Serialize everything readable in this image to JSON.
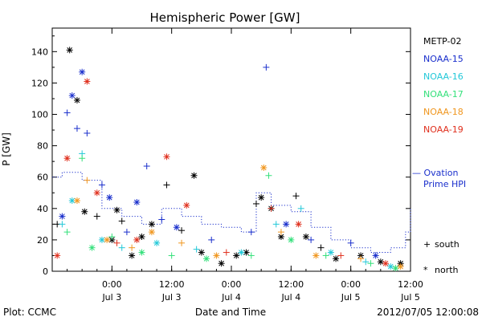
{
  "chart_data": {
    "type": "scatter",
    "title": "Hemispheric Power [GW]",
    "ylabel": "P [GW]",
    "xlabel": "Date and Time",
    "ylim": [
      0,
      155
    ],
    "y_ticks": [
      0,
      20,
      40,
      60,
      80,
      100,
      120,
      140
    ],
    "xlim": [
      "2012-07-02 12:00",
      "2012-07-05 12:00"
    ],
    "x_ticks": [
      {
        "time": "2012-07-03 00:00",
        "line1": "0:00",
        "line2": "Jul 3"
      },
      {
        "time": "2012-07-03 12:00",
        "line1": "12:00",
        "line2": "Jul 3"
      },
      {
        "time": "2012-07-04 00:00",
        "line1": "0:00",
        "line2": "Jul 4"
      },
      {
        "time": "2012-07-04 12:00",
        "line1": "12:00",
        "line2": "Jul 4"
      },
      {
        "time": "2012-07-05 00:00",
        "line1": "0:00",
        "line2": "Jul 5"
      },
      {
        "time": "2012-07-05 12:00",
        "line1": "12:00",
        "line2": "Jul 5"
      }
    ],
    "series": [
      {
        "name": "METP-02",
        "color": "#000000",
        "points": [
          {
            "x": "2012-07-02 13:00",
            "y": 30,
            "m": "+"
          },
          {
            "x": "2012-07-02 15:30",
            "y": 141,
            "m": "*"
          },
          {
            "x": "2012-07-02 17:00",
            "y": 109,
            "m": "*"
          },
          {
            "x": "2012-07-02 18:30",
            "y": 38,
            "m": "*"
          },
          {
            "x": "2012-07-02 21:00",
            "y": 35,
            "m": "+"
          },
          {
            "x": "2012-07-03 00:00",
            "y": 20,
            "m": "*"
          },
          {
            "x": "2012-07-03 01:00",
            "y": 39,
            "m": "*"
          },
          {
            "x": "2012-07-03 02:00",
            "y": 32,
            "m": "+"
          },
          {
            "x": "2012-07-03 04:00",
            "y": 10,
            "m": "*"
          },
          {
            "x": "2012-07-03 06:00",
            "y": 22,
            "m": "*"
          },
          {
            "x": "2012-07-03 08:00",
            "y": 30,
            "m": "*"
          },
          {
            "x": "2012-07-03 11:00",
            "y": 55,
            "m": "+"
          },
          {
            "x": "2012-07-03 14:00",
            "y": 26,
            "m": "+"
          },
          {
            "x": "2012-07-03 16:30",
            "y": 61,
            "m": "*"
          },
          {
            "x": "2012-07-03 18:00",
            "y": 12,
            "m": "*"
          },
          {
            "x": "2012-07-03 22:00",
            "y": 5,
            "m": "*"
          },
          {
            "x": "2012-07-04 01:00",
            "y": 10,
            "m": "*"
          },
          {
            "x": "2012-07-04 03:00",
            "y": 12,
            "m": "*"
          },
          {
            "x": "2012-07-04 05:00",
            "y": 43,
            "m": "+"
          },
          {
            "x": "2012-07-04 06:00",
            "y": 47,
            "m": "*"
          },
          {
            "x": "2012-07-04 08:00",
            "y": 40,
            "m": "*"
          },
          {
            "x": "2012-07-04 10:00",
            "y": 22,
            "m": "*"
          },
          {
            "x": "2012-07-04 13:00",
            "y": 48,
            "m": "+"
          },
          {
            "x": "2012-07-04 15:00",
            "y": 22,
            "m": "*"
          },
          {
            "x": "2012-07-04 18:00",
            "y": 15,
            "m": "+"
          },
          {
            "x": "2012-07-04 21:00",
            "y": 8,
            "m": "*"
          },
          {
            "x": "2012-07-05 02:00",
            "y": 10,
            "m": "*"
          },
          {
            "x": "2012-07-05 06:00",
            "y": 6,
            "m": "*"
          },
          {
            "x": "2012-07-05 10:00",
            "y": 5,
            "m": "*"
          }
        ]
      },
      {
        "name": "NOAA-15",
        "color": "#1a2fcc",
        "points": [
          {
            "x": "2012-07-02 14:00",
            "y": 35,
            "m": "*"
          },
          {
            "x": "2012-07-02 15:00",
            "y": 101,
            "m": "+"
          },
          {
            "x": "2012-07-02 16:00",
            "y": 112,
            "m": "*"
          },
          {
            "x": "2012-07-02 17:00",
            "y": 91,
            "m": "+"
          },
          {
            "x": "2012-07-02 18:00",
            "y": 127,
            "m": "*"
          },
          {
            "x": "2012-07-02 19:00",
            "y": 88,
            "m": "+"
          },
          {
            "x": "2012-07-02 22:00",
            "y": 55,
            "m": "+"
          },
          {
            "x": "2012-07-02 23:30",
            "y": 47,
            "m": "*"
          },
          {
            "x": "2012-07-03 03:00",
            "y": 25,
            "m": "+"
          },
          {
            "x": "2012-07-03 05:00",
            "y": 44,
            "m": "*"
          },
          {
            "x": "2012-07-03 07:00",
            "y": 67,
            "m": "+"
          },
          {
            "x": "2012-07-03 10:00",
            "y": 33,
            "m": "+"
          },
          {
            "x": "2012-07-03 13:00",
            "y": 28,
            "m": "*"
          },
          {
            "x": "2012-07-03 20:00",
            "y": 20,
            "m": "+"
          },
          {
            "x": "2012-07-04 04:00",
            "y": 25,
            "m": "+"
          },
          {
            "x": "2012-07-04 07:00",
            "y": 130,
            "m": "+"
          },
          {
            "x": "2012-07-04 11:00",
            "y": 30,
            "m": "*"
          },
          {
            "x": "2012-07-04 16:00",
            "y": 20,
            "m": "+"
          },
          {
            "x": "2012-07-05 00:00",
            "y": 18,
            "m": "+"
          },
          {
            "x": "2012-07-05 05:00",
            "y": 10,
            "m": "*"
          }
        ]
      },
      {
        "name": "NOAA-16",
        "color": "#22c8d8",
        "points": [
          {
            "x": "2012-07-02 14:00",
            "y": 30,
            "m": "+"
          },
          {
            "x": "2012-07-02 16:00",
            "y": 45,
            "m": "*"
          },
          {
            "x": "2012-07-02 18:00",
            "y": 75,
            "m": "+"
          },
          {
            "x": "2012-07-02 22:00",
            "y": 20,
            "m": "*"
          },
          {
            "x": "2012-07-03 02:00",
            "y": 15,
            "m": "+"
          },
          {
            "x": "2012-07-03 09:00",
            "y": 18,
            "m": "*"
          },
          {
            "x": "2012-07-03 17:00",
            "y": 14,
            "m": "+"
          },
          {
            "x": "2012-07-04 02:00",
            "y": 12,
            "m": "*"
          },
          {
            "x": "2012-07-04 09:00",
            "y": 30,
            "m": "+"
          },
          {
            "x": "2012-07-04 14:00",
            "y": 40,
            "m": "+"
          },
          {
            "x": "2012-07-04 20:00",
            "y": 12,
            "m": "*"
          },
          {
            "x": "2012-07-05 03:00",
            "y": 6,
            "m": "+"
          },
          {
            "x": "2012-07-05 08:00",
            "y": 3,
            "m": "*"
          }
        ]
      },
      {
        "name": "NOAA-17",
        "color": "#33e07a",
        "points": [
          {
            "x": "2012-07-02 15:00",
            "y": 25,
            "m": "+"
          },
          {
            "x": "2012-07-02 18:00",
            "y": 72,
            "m": "+"
          },
          {
            "x": "2012-07-02 20:00",
            "y": 15,
            "m": "*"
          },
          {
            "x": "2012-07-03 00:00",
            "y": 22,
            "m": "+"
          },
          {
            "x": "2012-07-03 06:00",
            "y": 12,
            "m": "*"
          },
          {
            "x": "2012-07-03 12:00",
            "y": 10,
            "m": "+"
          },
          {
            "x": "2012-07-03 19:00",
            "y": 8,
            "m": "*"
          },
          {
            "x": "2012-07-04 04:00",
            "y": 10,
            "m": "+"
          },
          {
            "x": "2012-07-04 07:30",
            "y": 61,
            "m": "+"
          },
          {
            "x": "2012-07-04 12:00",
            "y": 20,
            "m": "*"
          },
          {
            "x": "2012-07-04 19:00",
            "y": 10,
            "m": "+"
          },
          {
            "x": "2012-07-05 04:00",
            "y": 5,
            "m": "+"
          },
          {
            "x": "2012-07-05 09:00",
            "y": 2,
            "m": "*"
          }
        ]
      },
      {
        "name": "NOAA-18",
        "color": "#f0961e",
        "points": [
          {
            "x": "2012-07-02 17:00",
            "y": 45,
            "m": "*"
          },
          {
            "x": "2012-07-02 19:00",
            "y": 58,
            "m": "+"
          },
          {
            "x": "2012-07-02 23:00",
            "y": 20,
            "m": "*"
          },
          {
            "x": "2012-07-03 04:00",
            "y": 15,
            "m": "+"
          },
          {
            "x": "2012-07-03 08:00",
            "y": 25,
            "m": "*"
          },
          {
            "x": "2012-07-03 14:00",
            "y": 18,
            "m": "+"
          },
          {
            "x": "2012-07-03 21:00",
            "y": 10,
            "m": "*"
          },
          {
            "x": "2012-07-04 06:30",
            "y": 66,
            "m": "*"
          },
          {
            "x": "2012-07-04 10:00",
            "y": 25,
            "m": "+"
          },
          {
            "x": "2012-07-04 17:00",
            "y": 10,
            "m": "*"
          },
          {
            "x": "2012-07-05 02:00",
            "y": 8,
            "m": "+"
          },
          {
            "x": "2012-07-05 10:00",
            "y": 3,
            "m": "*"
          }
        ]
      },
      {
        "name": "NOAA-19",
        "color": "#e0301e",
        "points": [
          {
            "x": "2012-07-02 13:00",
            "y": 10,
            "m": "*"
          },
          {
            "x": "2012-07-02 15:00",
            "y": 72,
            "m": "*"
          },
          {
            "x": "2012-07-02 19:00",
            "y": 121,
            "m": "*"
          },
          {
            "x": "2012-07-02 21:00",
            "y": 50,
            "m": "*"
          },
          {
            "x": "2012-07-03 01:00",
            "y": 18,
            "m": "+"
          },
          {
            "x": "2012-07-03 05:00",
            "y": 20,
            "m": "*"
          },
          {
            "x": "2012-07-03 11:00",
            "y": 73,
            "m": "*"
          },
          {
            "x": "2012-07-03 15:00",
            "y": 42,
            "m": "*"
          },
          {
            "x": "2012-07-03 23:00",
            "y": 12,
            "m": "+"
          },
          {
            "x": "2012-07-04 08:00",
            "y": 40,
            "m": "+"
          },
          {
            "x": "2012-07-04 13:30",
            "y": 30,
            "m": "*"
          },
          {
            "x": "2012-07-04 22:00",
            "y": 10,
            "m": "+"
          },
          {
            "x": "2012-07-05 07:00",
            "y": 5,
            "m": "*"
          }
        ]
      }
    ],
    "ovation": {
      "name_line1": "— Ovation",
      "name_line2": "Prime HPI",
      "color": "#1a2fcc",
      "points": [
        {
          "x": "2012-07-02 12:00",
          "y": 60
        },
        {
          "x": "2012-07-02 14:00",
          "y": 63
        },
        {
          "x": "2012-07-02 18:00",
          "y": 58
        },
        {
          "x": "2012-07-02 22:00",
          "y": 40
        },
        {
          "x": "2012-07-03 02:00",
          "y": 35
        },
        {
          "x": "2012-07-03 06:00",
          "y": 30
        },
        {
          "x": "2012-07-03 10:00",
          "y": 40
        },
        {
          "x": "2012-07-03 14:00",
          "y": 35
        },
        {
          "x": "2012-07-03 18:00",
          "y": 30
        },
        {
          "x": "2012-07-03 22:00",
          "y": 28
        },
        {
          "x": "2012-07-04 02:00",
          "y": 25
        },
        {
          "x": "2012-07-04 05:00",
          "y": 50
        },
        {
          "x": "2012-07-04 08:00",
          "y": 42
        },
        {
          "x": "2012-07-04 12:00",
          "y": 38
        },
        {
          "x": "2012-07-04 16:00",
          "y": 28
        },
        {
          "x": "2012-07-04 20:00",
          "y": 20
        },
        {
          "x": "2012-07-05 00:00",
          "y": 15
        },
        {
          "x": "2012-07-05 04:00",
          "y": 12
        },
        {
          "x": "2012-07-05 08:00",
          "y": 15
        },
        {
          "x": "2012-07-05 11:00",
          "y": 25
        },
        {
          "x": "2012-07-05 12:00",
          "y": 40
        }
      ]
    },
    "marker_legend": [
      {
        "symbol": "+",
        "label": "south"
      },
      {
        "symbol": "*",
        "label": "north"
      }
    ],
    "legend_position": "right"
  },
  "footer": {
    "left": "Plot: CCMC",
    "right": "2012/07/05 12:00:08"
  }
}
